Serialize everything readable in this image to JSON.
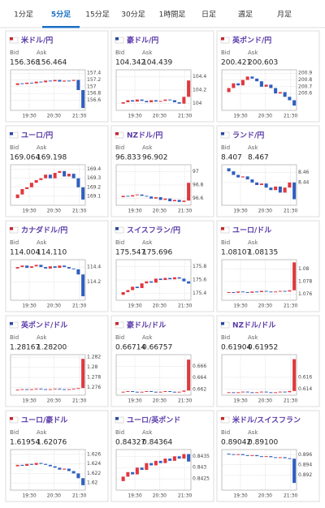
{
  "tabs": [
    "1分足",
    "5分足",
    "15分足",
    "30分足",
    "1時間足",
    "日足",
    "週足",
    "月足"
  ],
  "up_color": "#e0383e",
  "down_color": "#2f5fbf",
  "panels": [
    {
      "name": "米ドル/円",
      "bid_label": "Bid",
      "ask_label": "Ask",
      "bid": 156.368,
      "ask": 156.464,
      "ylim": [
        156.3,
        157.5
      ],
      "yticks": [
        157.4,
        157.2,
        157,
        156.8,
        156.6
      ],
      "xticks": [
        "19:30",
        "20:30",
        "21:30"
      ],
      "values": [
        157.05,
        157.1,
        157.08,
        157.12,
        157.1,
        157.15,
        157.13,
        157.18,
        157.16,
        157.2,
        157.15,
        157.18,
        157.17,
        157.2,
        156.9,
        156.368
      ]
    },
    {
      "name": "豪ドル/円",
      "bid_label": "Bid",
      "ask_label": "Ask",
      "bid": 104.342,
      "ask": 104.439,
      "ylim": [
        103.9,
        104.5
      ],
      "yticks": [
        104.4,
        104.2,
        104
      ],
      "xticks": [
        "19:30",
        "20:30",
        "21:30"
      ],
      "values": [
        104.0,
        104.02,
        104.05,
        104.03,
        104.06,
        104.04,
        104.02,
        104.05,
        104.03,
        104.04,
        104.06,
        104.05,
        104.02,
        104.0,
        104.1,
        104.342
      ]
    },
    {
      "name": "英ポンド/円",
      "bid_label": "Bid",
      "ask_label": "Ask",
      "bid": 200.421,
      "ask": 200.603,
      "ylim": [
        200.35,
        200.95
      ],
      "yticks": [
        200.9,
        200.8,
        200.7,
        200.6
      ],
      "xticks": [
        "19:30",
        "20:30",
        "21:30"
      ],
      "values": [
        200.62,
        200.68,
        200.75,
        200.72,
        200.8,
        200.85,
        200.82,
        200.78,
        200.7,
        200.73,
        200.68,
        200.6,
        200.62,
        200.55,
        200.5,
        200.421
      ]
    },
    {
      "name": "ユーロ/円",
      "bid_label": "Bid",
      "ask_label": "Ask",
      "bid": 169.064,
      "ask": 169.198,
      "ylim": [
        169.0,
        169.45
      ],
      "yticks": [
        169.4,
        169.3,
        169.2,
        169.1
      ],
      "xticks": [
        "19:30",
        "20:30",
        "21:30"
      ],
      "values": [
        169.08,
        169.12,
        169.18,
        169.2,
        169.25,
        169.28,
        169.3,
        169.34,
        169.3,
        169.36,
        169.38,
        169.32,
        169.35,
        169.3,
        169.2,
        169.064
      ]
    },
    {
      "name": "NZドル/円",
      "bid_label": "Bid",
      "ask_label": "Ask",
      "bid": 96.833,
      "ask": 96.902,
      "ylim": [
        96.5,
        97.1
      ],
      "yticks": [
        97,
        96.8,
        96.6
      ],
      "xticks": [
        "19:30",
        "20:30",
        "21:30"
      ],
      "values": [
        96.62,
        96.64,
        96.63,
        96.65,
        96.66,
        96.64,
        96.63,
        96.6,
        96.62,
        96.58,
        96.6,
        96.56,
        96.58,
        96.55,
        96.57,
        96.833
      ]
    },
    {
      "name": "ランド/円",
      "bid_label": "Bid",
      "ask_label": "Ask",
      "bid": 8.407,
      "ask": 8.467,
      "ylim": [
        8.395,
        8.475
      ],
      "yticks": [
        8.46,
        8.44
      ],
      "xticks": [
        "19:30",
        "20:30",
        "21:30"
      ],
      "values": [
        8.468,
        8.462,
        8.455,
        8.45,
        8.452,
        8.446,
        8.44,
        8.435,
        8.438,
        8.43,
        8.425,
        8.432,
        8.42,
        8.43,
        8.44,
        8.407
      ]
    },
    {
      "name": "カナダドル/円",
      "bid_label": "Bid",
      "ask_label": "Ask",
      "bid": 114.004,
      "ask": {
        "value": 114.11,
        "label": "114.110"
      },
      "ylim": [
        113.95,
        114.5
      ],
      "yticks": [
        114.4,
        114.2
      ],
      "xticks": [
        "19:30",
        "20:30",
        "21:30"
      ],
      "values": [
        114.38,
        114.4,
        114.42,
        114.39,
        114.41,
        114.43,
        114.4,
        114.38,
        114.41,
        114.39,
        114.42,
        114.4,
        114.38,
        114.37,
        114.3,
        114.004
      ]
    },
    {
      "name": "スイスフラン/円",
      "bid_label": "Bid",
      "ask_label": "Ask",
      "bid": 175.547,
      "ask": 175.696,
      "ylim": [
        175.3,
        175.9
      ],
      "yticks": [
        175.8,
        175.6,
        175.4
      ],
      "xticks": [
        "19:30",
        "20:30",
        "21:30"
      ],
      "values": [
        175.38,
        175.42,
        175.45,
        175.5,
        175.48,
        175.55,
        175.58,
        175.56,
        175.62,
        175.6,
        175.63,
        175.61,
        175.64,
        175.62,
        175.58,
        175.547
      ]
    },
    {
      "name": "ユーロ/ドル",
      "bid_label": "Bid",
      "ask_label": "Ask",
      "bid": 1.08107,
      "ask": 1.08135,
      "ylim": [
        1.075,
        1.0815
      ],
      "yticks": [
        1.08,
        1.078,
        1.076
      ],
      "xticks": [
        "19:30",
        "20:30",
        "21:30"
      ],
      "values": [
        1.0762,
        1.0763,
        1.0762,
        1.0764,
        1.0763,
        1.0762,
        1.0764,
        1.0763,
        1.0765,
        1.0764,
        1.0763,
        1.0764,
        1.0765,
        1.0764,
        1.0766,
        1.08107
      ]
    },
    {
      "name": "英ポンド/ドル",
      "bid_label": "Bid",
      "ask_label": "Ask",
      "bid": 1.28167,
      "ask": {
        "value": 1.282,
        "label": "1.28200"
      },
      "ylim": [
        1.2745,
        1.2825
      ],
      "yticks": [
        1.282,
        1.28,
        1.278,
        1.276
      ],
      "xticks": [
        "19:30",
        "20:30",
        "21:30"
      ],
      "values": [
        1.2755,
        1.2756,
        1.2757,
        1.2756,
        1.2757,
        1.2758,
        1.2757,
        1.2756,
        1.2757,
        1.2758,
        1.2757,
        1.2756,
        1.2757,
        1.2758,
        1.2759,
        1.28167
      ]
    },
    {
      "name": "豪ドル/ドル",
      "bid_label": "Bid",
      "ask_label": "Ask",
      "bid": 0.66714,
      "ask": 0.66757,
      "ylim": [
        0.661,
        0.668
      ],
      "yticks": [
        0.666,
        0.664,
        0.662
      ],
      "xticks": [
        "19:30",
        "20:30",
        "21:30"
      ],
      "values": [
        0.6615,
        0.6616,
        0.6617,
        0.6616,
        0.6615,
        0.6616,
        0.6617,
        0.6616,
        0.6615,
        0.6616,
        0.6617,
        0.6616,
        0.6615,
        0.6616,
        0.6618,
        0.66714
      ]
    },
    {
      "name": "NZドル/ドル",
      "bid_label": "Bid",
      "ask_label": "Ask",
      "bid": 0.61904,
      "ask": 0.61952,
      "ylim": [
        0.613,
        0.6198
      ],
      "yticks": [
        0.616,
        0.614
      ],
      "xticks": [
        "19:30",
        "20:30",
        "21:30"
      ],
      "values": [
        0.6134,
        0.6135,
        0.6134,
        0.6135,
        0.6136,
        0.6135,
        0.6134,
        0.6135,
        0.6136,
        0.6135,
        0.6134,
        0.6135,
        0.6136,
        0.6135,
        0.6137,
        0.61904
      ]
    },
    {
      "name": "ユーロ/豪ドル",
      "bid_label": "Bid",
      "ask_label": "Ask",
      "bid": 1.61954,
      "ask": 1.62076,
      "ylim": [
        1.6185,
        1.627
      ],
      "yticks": [
        1.626,
        1.624,
        1.622,
        1.62
      ],
      "xticks": [
        "19:30",
        "20:30",
        "21:30"
      ],
      "values": [
        1.6235,
        1.6238,
        1.6236,
        1.624,
        1.6238,
        1.6242,
        1.624,
        1.6238,
        1.6235,
        1.6232,
        1.6228,
        1.623,
        1.6225,
        1.622,
        1.621,
        1.61954
      ]
    },
    {
      "name": "ユーロ/英ポンド",
      "bid_label": "Bid",
      "ask_label": "Ask",
      "bid": 0.84327,
      "ask": 0.84364,
      "ylim": [
        0.842,
        0.8438
      ],
      "yticks": [
        0.8435,
        0.843,
        0.8425
      ],
      "xticks": [
        "19:30",
        "20:30",
        "21:30"
      ],
      "values": [
        0.8424,
        0.8426,
        0.8428,
        0.8427,
        0.843,
        0.8429,
        0.8432,
        0.8431,
        0.8433,
        0.8432,
        0.8434,
        0.8433,
        0.8435,
        0.8434,
        0.8436,
        0.84327
      ]
    },
    {
      "name": "米ドル/スイスフラン",
      "bid_label": "Bid",
      "ask_label": "Ask",
      "bid": 0.89042,
      "ask": {
        "value": 0.891,
        "label": "0.89100"
      },
      "ylim": [
        0.889,
        0.897
      ],
      "yticks": [
        0.896,
        0.894,
        0.892
      ],
      "xticks": [
        "19:30",
        "20:30",
        "21:30"
      ],
      "values": [
        0.8962,
        0.8961,
        0.896,
        0.8961,
        0.8959,
        0.8958,
        0.8959,
        0.8957,
        0.8956,
        0.8957,
        0.8955,
        0.8954,
        0.8955,
        0.8953,
        0.8952,
        0.89042
      ]
    }
  ]
}
